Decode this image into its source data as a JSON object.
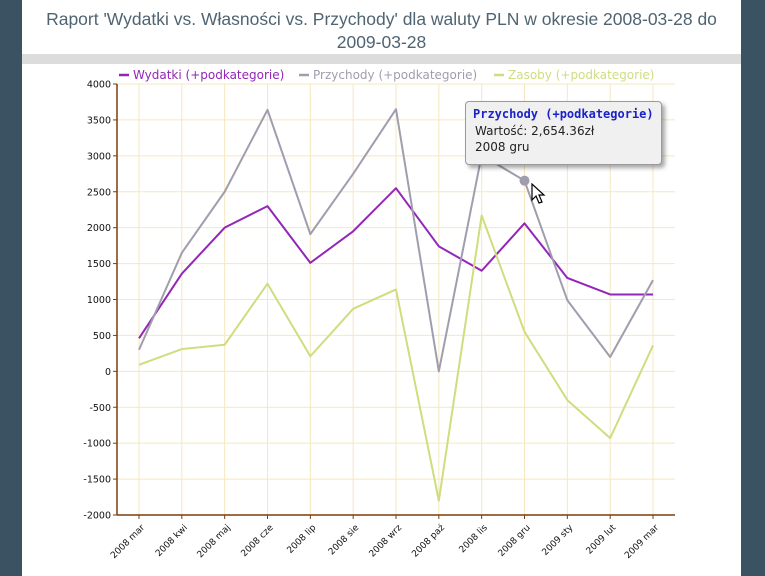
{
  "title": "Raport 'Wydatki vs. Własności vs. Przychody' dla waluty PLN w okresie 2008-03-28 do 2009-03-28",
  "tooltip": {
    "series": "Przychody (+podkategorie)",
    "value_line": "Wartość: 2,654.36zł",
    "period": "2008 gru"
  },
  "colors": {
    "expenses": "#9326b8",
    "income": "#a09eae",
    "assets": "#cfdd7f",
    "axis": "#7a3d0c",
    "grid": "#f6e7bf",
    "frame": "#3b5263"
  },
  "chart_data": {
    "type": "line",
    "title": "Raport 'Wydatki vs. Własności vs. Przychody' dla waluty PLN w okresie 2008-03-28 do 2009-03-28",
    "categories": [
      "2008 mar",
      "2008 kwi",
      "2008 maj",
      "2008 cze",
      "2008 lip",
      "2008 sie",
      "2008 wrz",
      "2008 paź",
      "2008 lis",
      "2008 gru",
      "2009 sty",
      "2009 lut",
      "2009 mar"
    ],
    "ylim": [
      -2000,
      4000
    ],
    "yticks": [
      -2000,
      -1500,
      -1000,
      -500,
      0,
      500,
      1000,
      1500,
      2000,
      2500,
      3000,
      3500,
      4000
    ],
    "grid": true,
    "legend_position": "top",
    "series": [
      {
        "name": "Wydatki (+podkategorie)",
        "color": "#9326b8",
        "values": [
          460,
          1360,
          2000,
          2300,
          1510,
          1950,
          2550,
          1740,
          1400,
          2060,
          1300,
          1070,
          1070
        ]
      },
      {
        "name": "Przychody (+podkategorie)",
        "color": "#a09eae",
        "values": [
          300,
          1650,
          2500,
          3640,
          1910,
          2750,
          3650,
          0,
          3010,
          2654.36,
          990,
          200,
          1270
        ]
      },
      {
        "name": "Zasoby (+podkategorie)",
        "color": "#cfdd7f",
        "values": [
          90,
          310,
          370,
          1220,
          210,
          870,
          1140,
          -1800,
          2170,
          550,
          -400,
          -930,
          360
        ]
      }
    ],
    "highlight": {
      "series_index": 1,
      "category_index": 9
    }
  }
}
